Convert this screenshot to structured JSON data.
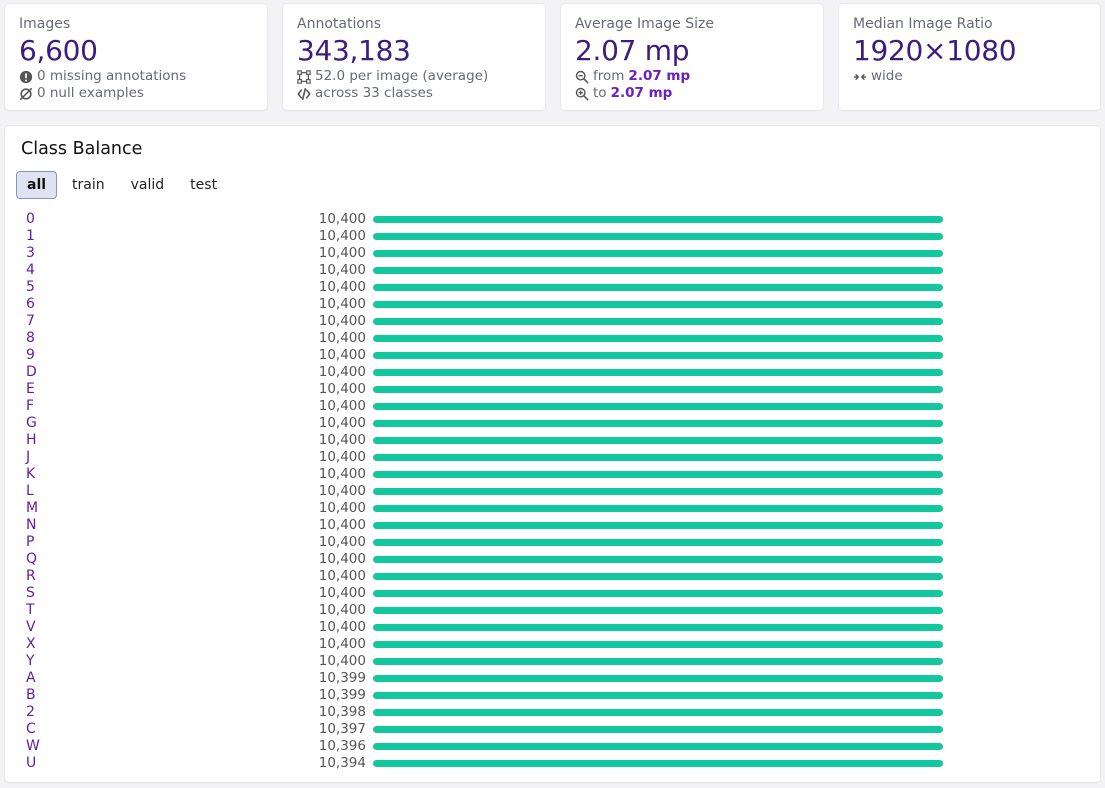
{
  "stats": {
    "images": {
      "label": "Images",
      "value": "6,600",
      "missing": "0 missing annotations",
      "null_examples": "0 null examples"
    },
    "annotations": {
      "label": "Annotations",
      "value": "343,183",
      "per_image": "52.0 per image (average)",
      "classes": "across 33 classes"
    },
    "avg_size": {
      "label": "Average Image Size",
      "value": "2.07 mp",
      "from_label": "from",
      "from_value": "2.07 mp",
      "to_label": "to",
      "to_value": "2.07 mp"
    },
    "median_ratio": {
      "label": "Median Image Ratio",
      "value": "1920×1080",
      "orientation": "wide"
    }
  },
  "class_balance": {
    "title": "Class Balance",
    "tabs": [
      "all",
      "train",
      "valid",
      "test"
    ],
    "active_tab": "all",
    "bar_color": "#13c79e",
    "label_color": "#5c1fa8"
  },
  "chart_data": {
    "type": "bar",
    "orientation": "horizontal",
    "categories": [
      "0",
      "1",
      "3",
      "4",
      "5",
      "6",
      "7",
      "8",
      "9",
      "D",
      "E",
      "F",
      "G",
      "H",
      "J",
      "K",
      "L",
      "M",
      "N",
      "P",
      "Q",
      "R",
      "S",
      "T",
      "V",
      "X",
      "Y",
      "A",
      "B",
      "2",
      "C",
      "W",
      "U"
    ],
    "values": [
      10400,
      10400,
      10400,
      10400,
      10400,
      10400,
      10400,
      10400,
      10400,
      10400,
      10400,
      10400,
      10400,
      10400,
      10400,
      10400,
      10400,
      10400,
      10400,
      10400,
      10400,
      10400,
      10400,
      10400,
      10400,
      10400,
      10400,
      10399,
      10399,
      10398,
      10397,
      10396,
      10394
    ],
    "value_labels": [
      "10,400",
      "10,400",
      "10,400",
      "10,400",
      "10,400",
      "10,400",
      "10,400",
      "10,400",
      "10,400",
      "10,400",
      "10,400",
      "10,400",
      "10,400",
      "10,400",
      "10,400",
      "10,400",
      "10,400",
      "10,400",
      "10,400",
      "10,400",
      "10,400",
      "10,400",
      "10,400",
      "10,400",
      "10,400",
      "10,400",
      "10,400",
      "10,399",
      "10,399",
      "10,398",
      "10,397",
      "10,396",
      "10,394"
    ],
    "xlim": [
      0,
      10400
    ]
  }
}
